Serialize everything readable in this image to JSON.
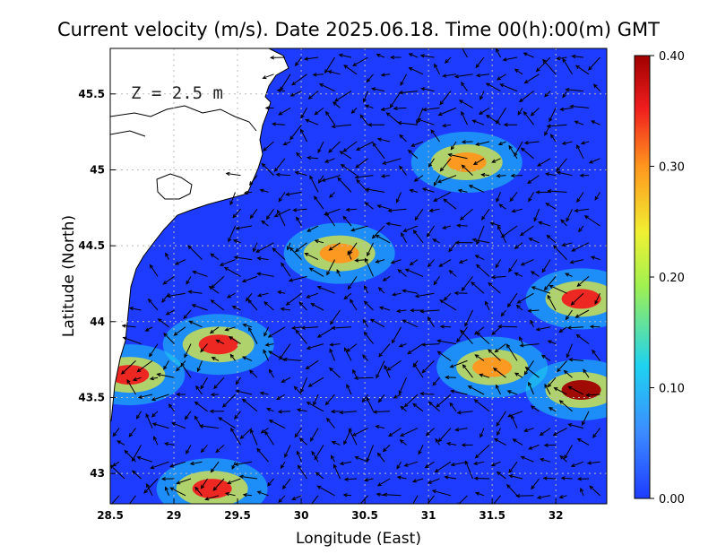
{
  "title": "Current velocity (m/s). Date 2025.06.18. Time 00(h):00(m) GMT",
  "depth_label": "Z = 2.5 m",
  "chart_data": {
    "type": "heatmap",
    "xlabel": "Longitude (East)",
    "ylabel": "Latitude (North)",
    "xlim": [
      28.5,
      32.4
    ],
    "ylim": [
      42.8,
      45.8
    ],
    "x_ticks": [
      "28.5",
      "29",
      "29.5",
      "30",
      "30.5",
      "31",
      "31.5",
      "32"
    ],
    "y_ticks": [
      "43",
      "43.5",
      "44",
      "44.5",
      "45",
      "45.5"
    ],
    "grid": true,
    "colorbar": {
      "min": 0.0,
      "max": 0.4,
      "tick_labels": [
        "0.00",
        "0.10",
        "0.20",
        "0.30",
        "0.40"
      ],
      "colors": [
        "#1e3cff",
        "#3c8cff",
        "#1ed2f0",
        "#a0f050",
        "#f0f032",
        "#ff961e",
        "#f01e1e",
        "#a00000"
      ]
    },
    "hotspots": [
      {
        "lon": 32.2,
        "lat": 43.55,
        "speed": 0.38
      },
      {
        "lon": 29.3,
        "lat": 42.9,
        "speed": 0.36
      },
      {
        "lon": 32.2,
        "lat": 44.15,
        "speed": 0.34
      },
      {
        "lon": 28.65,
        "lat": 43.65,
        "speed": 0.33
      },
      {
        "lon": 29.35,
        "lat": 43.85,
        "speed": 0.32
      },
      {
        "lon": 31.3,
        "lat": 45.05,
        "speed": 0.28
      },
      {
        "lon": 30.3,
        "lat": 44.45,
        "speed": 0.26
      },
      {
        "lon": 31.5,
        "lat": 43.7,
        "speed": 0.26
      }
    ],
    "land_color": "#ffffff",
    "vector_color": "#000000"
  }
}
